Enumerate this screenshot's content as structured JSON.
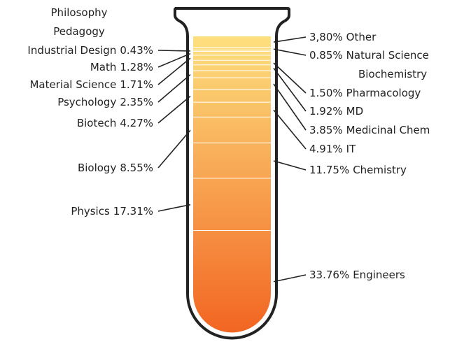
{
  "chart_data": {
    "type": "tube",
    "categories": [
      "Other",
      "Philosophy",
      "Pedagogy",
      "Natural Science",
      "Industrial Design",
      "Math",
      "Biochemistry",
      "Material Science",
      "Pharmacology",
      "MD",
      "Psychology",
      "Medicinal Chem",
      "Biotech",
      "IT",
      "Biology",
      "Chemistry",
      "Physics",
      "Engineers"
    ],
    "values": [
      3.8,
      null,
      null,
      0.85,
      0.43,
      1.28,
      null,
      1.71,
      1.5,
      1.92,
      2.35,
      3.85,
      4.27,
      4.91,
      8.55,
      11.75,
      17.31,
      33.76
    ],
    "value_labels": [
      "3,80%",
      null,
      null,
      "0.85%",
      "0.43%",
      "1.28%",
      null,
      "1.71%",
      "1.50%",
      "1.92%",
      "2.35%",
      "3.85%",
      "4.27%",
      "4.91%",
      "8.55%",
      "11.75%",
      "17.31%",
      "33.76%"
    ],
    "colors": [
      "#fde07e",
      "#f26522"
    ]
  }
}
